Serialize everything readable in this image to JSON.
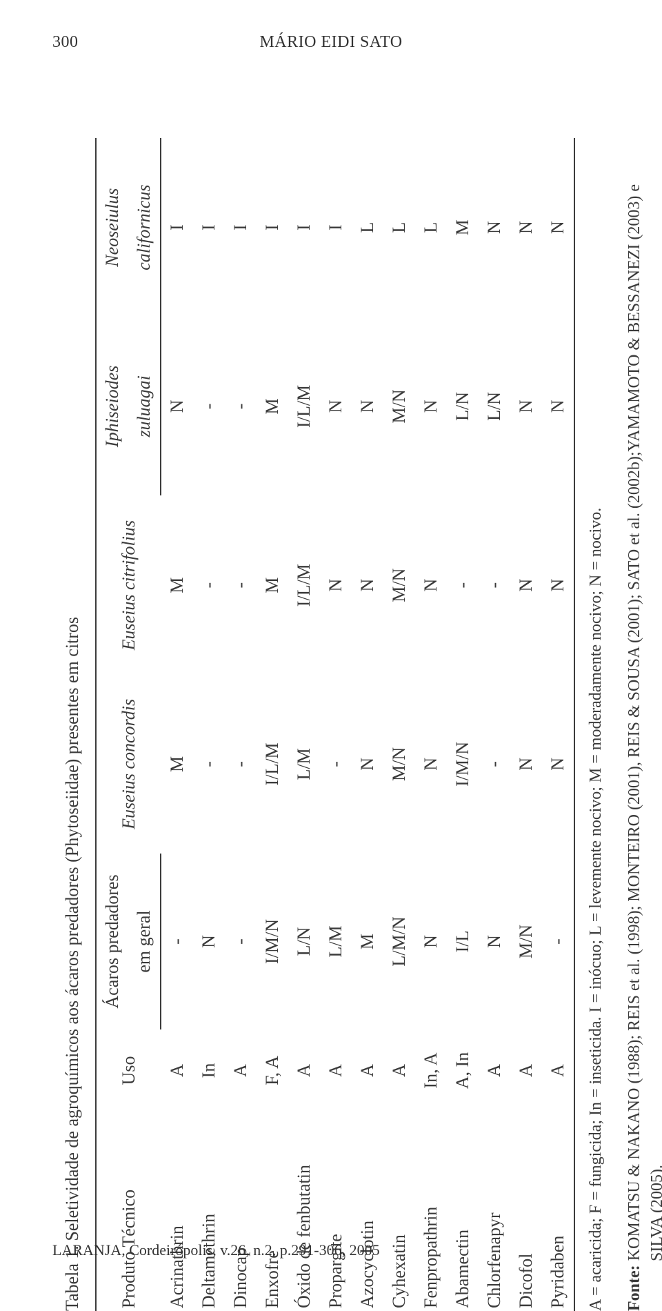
{
  "page": {
    "number": "300",
    "author_header": "MÁRIO EIDI SATO",
    "footer": "LARANJA, Cordeirópolis, v.26, n.2, p.291-306, 2005"
  },
  "table": {
    "caption": "Tabela 1. Seletividade de agroquímicos aos ácaros predadores (Phytoseiidae) presentes em citros",
    "columns": {
      "prod": "Produto Técnico",
      "uso": "Uso",
      "geral_l1": "Ácaros predadores",
      "geral_l2": "em geral",
      "sp1": "Euseius concordis",
      "sp2": "Euseius citrifolius",
      "sp3_l1": "Iphiseiodes",
      "sp3_l2": "zuluagai",
      "sp4_l1": "Neoseiulus",
      "sp4_l2": "californicus"
    },
    "rows": [
      {
        "prod": "Acrinathrin",
        "uso": "A",
        "geral": "-",
        "sp1": "M",
        "sp2": "M",
        "sp3": "N",
        "sp4": "I"
      },
      {
        "prod": "Deltamethrin",
        "uso": "In",
        "geral": "N",
        "sp1": "-",
        "sp2": "-",
        "sp3": "-",
        "sp4": "I"
      },
      {
        "prod": "Dinocap",
        "uso": "A",
        "geral": "-",
        "sp1": "-",
        "sp2": "-",
        "sp3": "-",
        "sp4": "I"
      },
      {
        "prod": "Enxofre",
        "uso": "F, A",
        "geral": "I/M/N",
        "sp1": "I/L/M",
        "sp2": "M",
        "sp3": "M",
        "sp4": "I"
      },
      {
        "prod": "Óxido de fenbutatin",
        "uso": "A",
        "geral": "L/N",
        "sp1": "L/M",
        "sp2": "I/L/M",
        "sp3": "I/L/M",
        "sp4": "I"
      },
      {
        "prod": "Propargite",
        "uso": "A",
        "geral": "L/M",
        "sp1": "-",
        "sp2": "N",
        "sp3": "N",
        "sp4": "I"
      },
      {
        "prod": "Azocyclotin",
        "uso": "A",
        "geral": "M",
        "sp1": "N",
        "sp2": "N",
        "sp3": "N",
        "sp4": "L"
      },
      {
        "prod": "Cyhexatin",
        "uso": "A",
        "geral": "L/M/N",
        "sp1": "M/N",
        "sp2": "M/N",
        "sp3": "M/N",
        "sp4": "L"
      },
      {
        "prod": "Fenpropathrin",
        "uso": "In, A",
        "geral": "N",
        "sp1": "N",
        "sp2": "N",
        "sp3": "N",
        "sp4": "L"
      },
      {
        "prod": "Abamectin",
        "uso": "A, In",
        "geral": "I/L",
        "sp1": "I/M/N",
        "sp2": "-",
        "sp3": "L/N",
        "sp4": "M"
      },
      {
        "prod": "Chlorfenapyr",
        "uso": "A",
        "geral": "N",
        "sp1": "-",
        "sp2": "-",
        "sp3": "L/N",
        "sp4": "N"
      },
      {
        "prod": "Dicofol",
        "uso": "A",
        "geral": "M/N",
        "sp1": "N",
        "sp2": "N",
        "sp3": "N",
        "sp4": "N"
      },
      {
        "prod": "Pyridaben",
        "uso": "A",
        "geral": "-",
        "sp1": "N",
        "sp2": "N",
        "sp3": "N",
        "sp4": "N"
      }
    ],
    "legend": "A = acaricida; F = fungicida; In = inseticida. I = inócuo; L = levemente nocivo; M = moderadamente nocivo; N = nocivo.",
    "source_label": "Fonte:",
    "source_text": " KOMATSU & NAKANO (1988); REIS et al. (1998); MONTEIRO (2001), REIS & SOUSA (2001); SATO et al. (2002b);YAMAMOTO & BESSANEZI (2003) e SILVA (2005)."
  }
}
